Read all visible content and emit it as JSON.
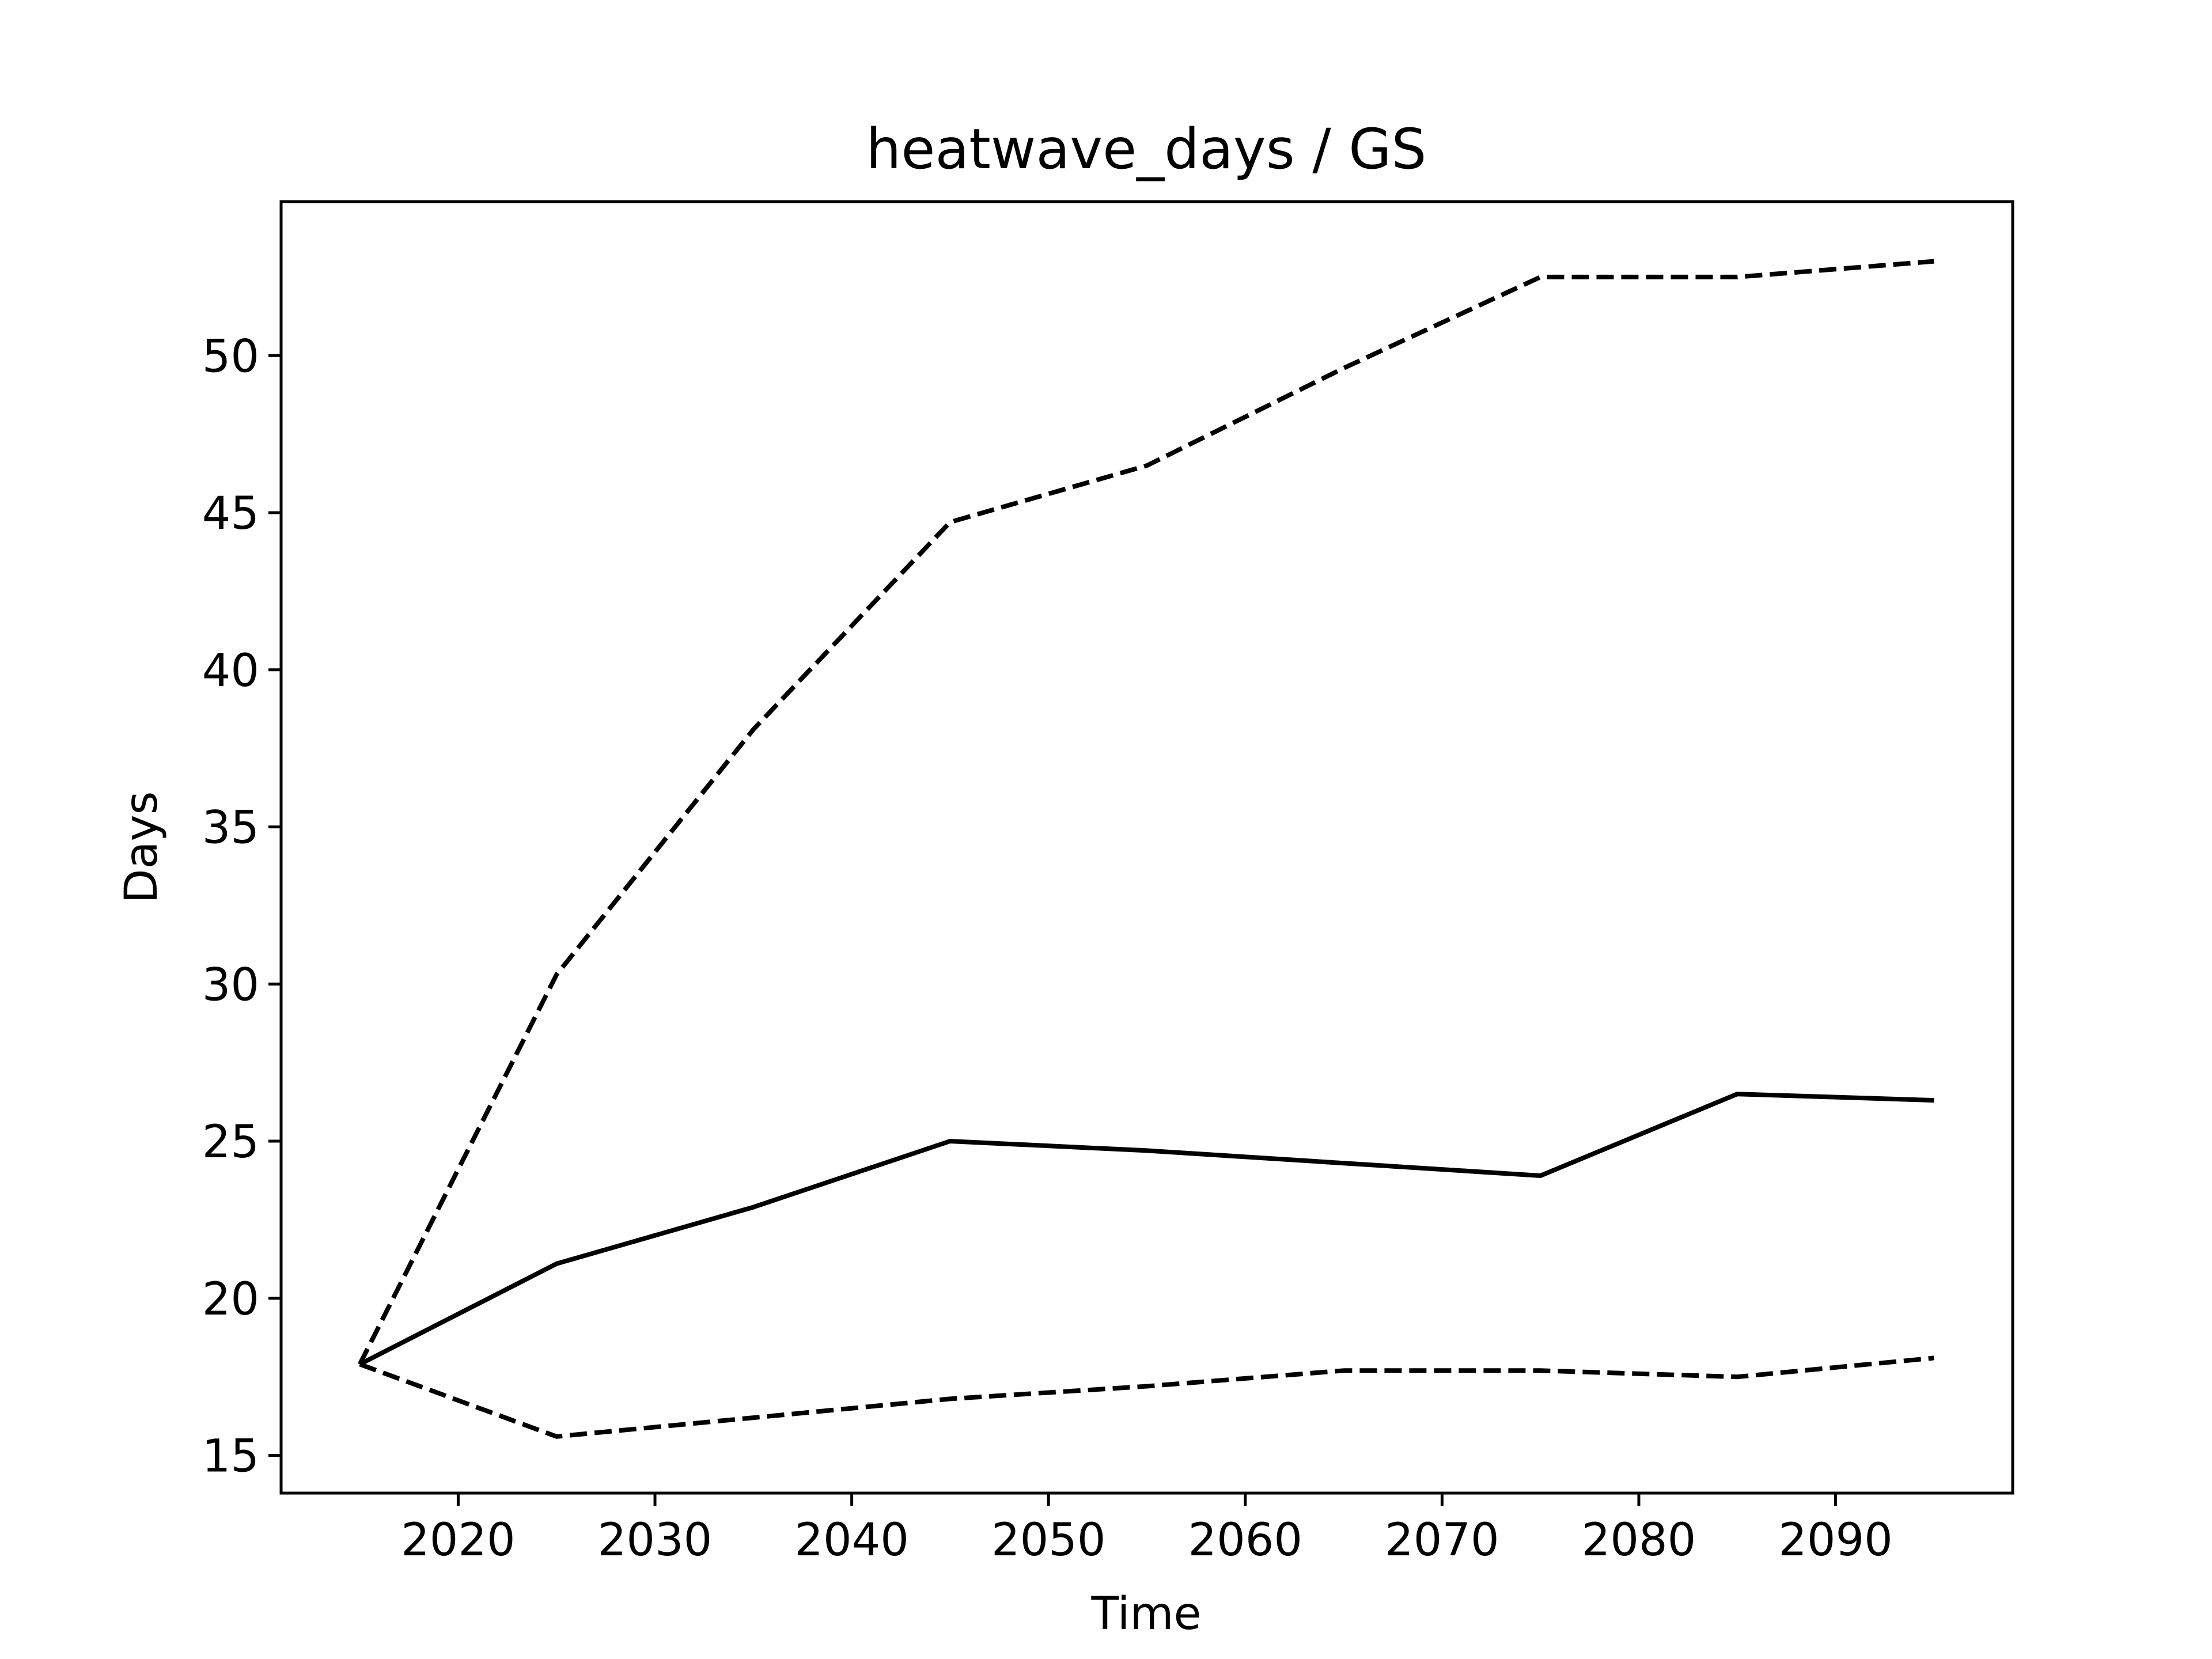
{
  "chart_data": {
    "type": "line",
    "title": "heatwave_days / GS",
    "xlabel": "Time",
    "ylabel": "Days",
    "xlim": [
      2011,
      2099
    ],
    "ylim": [
      13.8,
      54.9
    ],
    "xticks": [
      2020,
      2030,
      2040,
      2050,
      2060,
      2070,
      2080,
      2090
    ],
    "yticks": [
      15,
      20,
      25,
      30,
      35,
      40,
      45,
      50
    ],
    "grid": false,
    "x": [
      2015,
      2025,
      2035,
      2045,
      2055,
      2065,
      2075,
      2085,
      2095
    ],
    "series": [
      {
        "style": "dashed",
        "color": "#000000",
        "values": [
          17.9,
          30.3,
          38.1,
          44.7,
          46.5,
          49.6,
          52.5,
          52.5,
          53.0
        ]
      },
      {
        "style": "solid",
        "color": "#000000",
        "values": [
          17.9,
          21.1,
          22.9,
          25.0,
          24.7,
          24.3,
          23.9,
          26.5,
          26.3
        ]
      },
      {
        "style": "dashed",
        "color": "#000000",
        "values": [
          17.9,
          15.6,
          16.2,
          16.8,
          17.2,
          17.7,
          17.7,
          17.5,
          18.1
        ]
      }
    ]
  }
}
